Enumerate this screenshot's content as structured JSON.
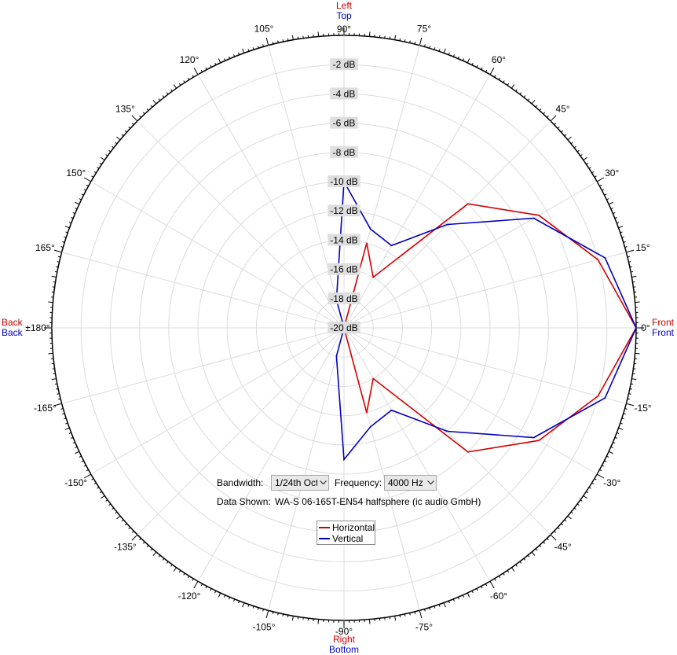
{
  "chart_data": {
    "type": "polar",
    "r_range_db": [
      -20,
      0
    ],
    "r_ticks": [
      "-2 dB",
      "-4 dB",
      "-6 dB",
      "-8 dB",
      "-10 dB",
      "-12 dB",
      "-14 dB",
      "-16 dB",
      "-18 dB",
      "-20 dB"
    ],
    "r_tick_values": [
      -2,
      -4,
      -6,
      -8,
      -10,
      -12,
      -14,
      -16,
      -18,
      -20
    ],
    "angle_labels": [
      {
        "deg": 0,
        "text": "0°"
      },
      {
        "deg": 15,
        "text": "15°"
      },
      {
        "deg": 30,
        "text": "30°"
      },
      {
        "deg": 45,
        "text": "45°"
      },
      {
        "deg": 60,
        "text": "60°"
      },
      {
        "deg": 75,
        "text": "75°"
      },
      {
        "deg": 90,
        "text": "90°"
      },
      {
        "deg": 105,
        "text": "105°"
      },
      {
        "deg": 120,
        "text": "120°"
      },
      {
        "deg": 135,
        "text": "135°"
      },
      {
        "deg": 150,
        "text": "150°"
      },
      {
        "deg": 165,
        "text": "165°"
      },
      {
        "deg": 180,
        "text": "±180°"
      },
      {
        "deg": -165,
        "text": "-165°"
      },
      {
        "deg": -150,
        "text": "-150°"
      },
      {
        "deg": -135,
        "text": "-135°"
      },
      {
        "deg": -120,
        "text": "-120°"
      },
      {
        "deg": -105,
        "text": "-105°"
      },
      {
        "deg": -90,
        "text": "-90°"
      },
      {
        "deg": -75,
        "text": "-75°"
      },
      {
        "deg": -60,
        "text": "-60°"
      },
      {
        "deg": -45,
        "text": "-45°"
      },
      {
        "deg": -30,
        "text": "-30°"
      },
      {
        "deg": -15,
        "text": "-15°"
      }
    ],
    "direction_labels": {
      "top": [
        {
          "text": "Left",
          "color": "#cc0000"
        },
        {
          "text": "Top",
          "color": "#0000cc"
        }
      ],
      "bottom": [
        {
          "text": "Right",
          "color": "#cc0000"
        },
        {
          "text": "Bottom",
          "color": "#0000cc"
        }
      ],
      "left": [
        {
          "text": "Back",
          "color": "#cc0000"
        },
        {
          "text": "Back",
          "color": "#0000cc"
        }
      ],
      "right": [
        {
          "text": "Front",
          "color": "#cc0000"
        },
        {
          "text": "Front",
          "color": "#0000cc"
        }
      ]
    },
    "series": [
      {
        "name": "Horizontal",
        "color": "#d40000",
        "points": [
          {
            "deg": 0,
            "db": 0
          },
          {
            "deg": 15,
            "db": -2
          },
          {
            "deg": 30,
            "db": -4.6
          },
          {
            "deg": 45,
            "db": -8
          },
          {
            "deg": 60,
            "db": -16
          },
          {
            "deg": 75,
            "db": -14
          },
          {
            "deg": 90,
            "db": -20
          },
          {
            "deg": -90,
            "db": -20
          },
          {
            "deg": -75,
            "db": -14
          },
          {
            "deg": -60,
            "db": -16
          },
          {
            "deg": -45,
            "db": -8
          },
          {
            "deg": -30,
            "db": -4.6
          },
          {
            "deg": -15,
            "db": -2
          }
        ]
      },
      {
        "name": "Vertical",
        "color": "#0000c0",
        "points": [
          {
            "deg": 0,
            "db": 0
          },
          {
            "deg": 15,
            "db": -1.5
          },
          {
            "deg": 30,
            "db": -5
          },
          {
            "deg": 45,
            "db": -10
          },
          {
            "deg": 60,
            "db": -13.5
          },
          {
            "deg": 75,
            "db": -13
          },
          {
            "deg": 90,
            "db": -10
          },
          {
            "deg": 105,
            "db": -18
          },
          {
            "deg": 180,
            "db": -20
          },
          {
            "deg": -105,
            "db": -18
          },
          {
            "deg": -90,
            "db": -11
          },
          {
            "deg": -75,
            "db": -13
          },
          {
            "deg": -60,
            "db": -13.5
          },
          {
            "deg": -45,
            "db": -10
          },
          {
            "deg": -30,
            "db": -5
          },
          {
            "deg": -15,
            "db": -1.5
          }
        ]
      }
    ],
    "grid": true,
    "legend_position": "bottom-center"
  },
  "controls": {
    "bandwidth_label": "Bandwidth:",
    "bandwidth_value": "1/24th Oct",
    "frequency_label": "Frequency:",
    "frequency_value": "4000 Hz",
    "data_shown_label": "Data Shown:",
    "data_shown_value": "WA-S 06-165T-EN54 halfsphere (ic audio GmbH)"
  },
  "legend": {
    "items": [
      {
        "label": "Horizontal",
        "color": "#d40000"
      },
      {
        "label": "Vertical",
        "color": "#0000c0"
      }
    ]
  }
}
